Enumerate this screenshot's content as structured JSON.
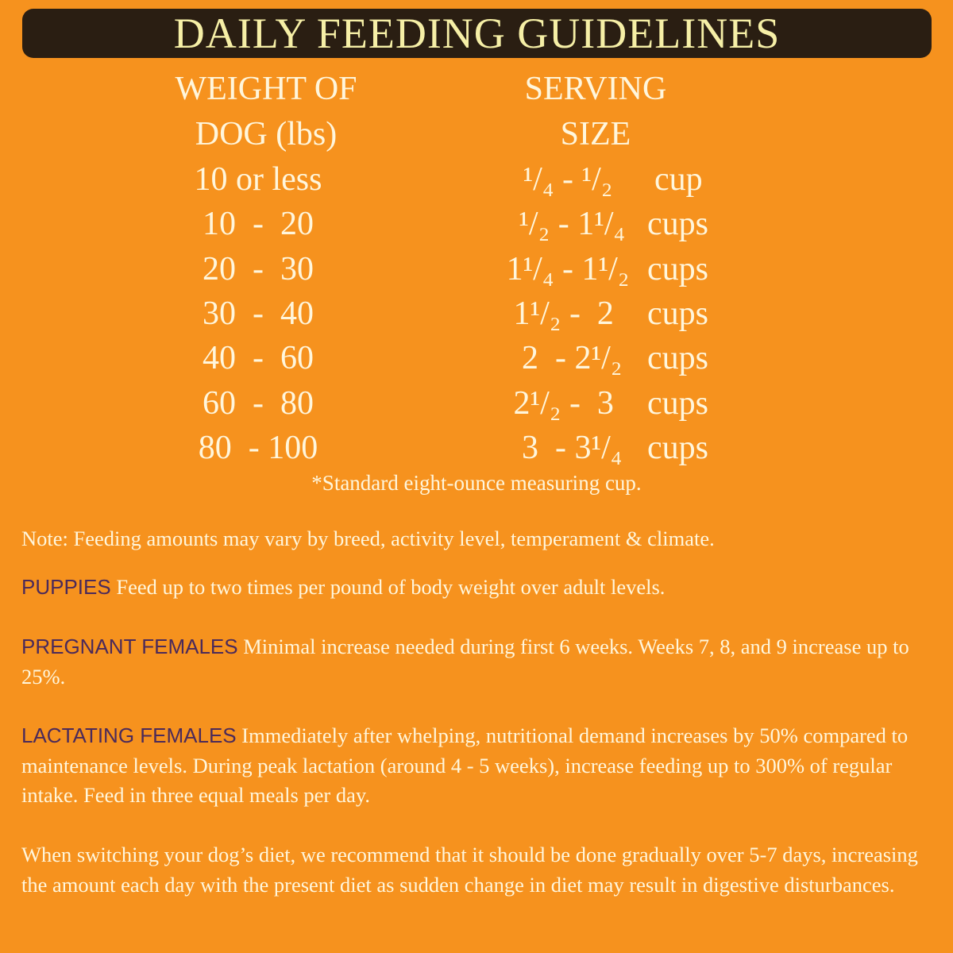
{
  "title": "DAILY FEEDING GUIDELINES",
  "table": {
    "headers": {
      "weight": "WEIGHT OF DOG (lbs)",
      "weight_line1": "WEIGHT OF",
      "weight_line2": "DOG (lbs)",
      "serving": "SERVING SIZE",
      "serving_line1": "SERVING",
      "serving_line2": "SIZE"
    },
    "rows": [
      {
        "weight": "10 or less",
        "serving": "¹/₄ - ¹/₂",
        "unit": "cup"
      },
      {
        "weight": "10  -  20",
        "serving": " ¹/₂ - 1¹/₄",
        "unit": "cups"
      },
      {
        "weight": "20  -  30",
        "serving": "1¹/₄ - 1¹/₂",
        "unit": "cups"
      },
      {
        "weight": "30  -  40",
        "serving": "1¹/₂ -  2 ",
        "unit": "cups"
      },
      {
        "weight": "40  -  60",
        "serving": " 2  - 2¹/₂",
        "unit": "cups"
      },
      {
        "weight": "60  -  80",
        "serving": "2¹/₂ -  3 ",
        "unit": "cups"
      },
      {
        "weight": "80  - 100",
        "serving": " 3  - 3¹/₄",
        "unit": "cups"
      }
    ],
    "footnote": "*Standard eight-ounce measuring cup."
  },
  "note": "Note: Feeding amounts may vary by breed, activity level, temperament & climate.",
  "sections": [
    {
      "label": "PUPPIES",
      "text": "Feed up to two times per pound of body weight over adult levels."
    },
    {
      "label": "PREGNANT FEMALES",
      "text": "Minimal increase needed during first 6 weeks. Weeks 7, 8, and 9 increase up to 25%."
    },
    {
      "label": "LACTATING FEMALES",
      "text": "Immediately after whelping, nutritional demand increases by 50% compared to maintenance levels. During peak lactation (around 4 - 5 weeks), increase feeding up to 300% of regular intake. Feed in three equal meals per day."
    }
  ],
  "closing": "When switching your dog’s diet, we recommend that it should be done gradually over 5-7 days, increasing the amount each day with the present diet as sudden change in diet may result in digestive disturbances.",
  "colors": {
    "background": "#F6921E",
    "banner": "#2A1E12",
    "title": "#F6EFA6",
    "label": "#4B2A5A",
    "text": "#FFF6DC"
  }
}
